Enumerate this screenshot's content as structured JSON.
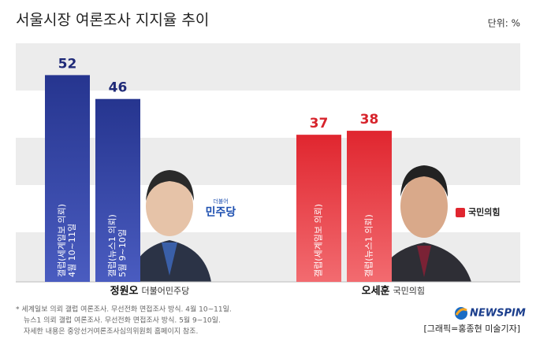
{
  "chart_data": {
    "type": "bar",
    "title": "서울시장 여론조사 지지율 추이",
    "unit": "단위: %",
    "categories": [
      "정원오",
      "오세훈"
    ],
    "parties": [
      "더불어민주당",
      "국민의힘"
    ],
    "party_logos": [
      {
        "small": "더불어",
        "main": "민주당"
      },
      {
        "main": "국민의힘"
      }
    ],
    "category_colors": [
      "#2a3a97",
      "#e0262f"
    ],
    "label_colors": [
      "#1f2a78",
      "#d7242c"
    ],
    "series": [
      {
        "values": [
          52,
          37
        ],
        "bar_labels": [
          [
            "갤럽(세계일보 의뢰)",
            "4월 10~11일"
          ],
          [
            "갤럽(세계일보 의뢰)"
          ]
        ]
      },
      {
        "values": [
          46,
          38
        ],
        "bar_labels": [
          [
            "갤럽(뉴스1 의뢰)",
            "5월 9~10일"
          ],
          [
            "갤럽(뉴스1 의뢰)"
          ]
        ]
      }
    ],
    "ylim": [
      0,
      60
    ],
    "footnotes": [
      "* 세계일보 의뢰 갤럽 여론조사. 무선전화 면접조사 방식. 4월 10~11일.",
      "뉴스1 의뢰 갤럽 여론조사. 무선전화 면접조사 방식. 5월 9~10일.",
      "자세한 내용은 중앙선거여론조사심의위원회 홈페이지 참조."
    ],
    "brand": "NEWSPIM",
    "credit": "[그래픽=홍종현 미술기자]"
  }
}
